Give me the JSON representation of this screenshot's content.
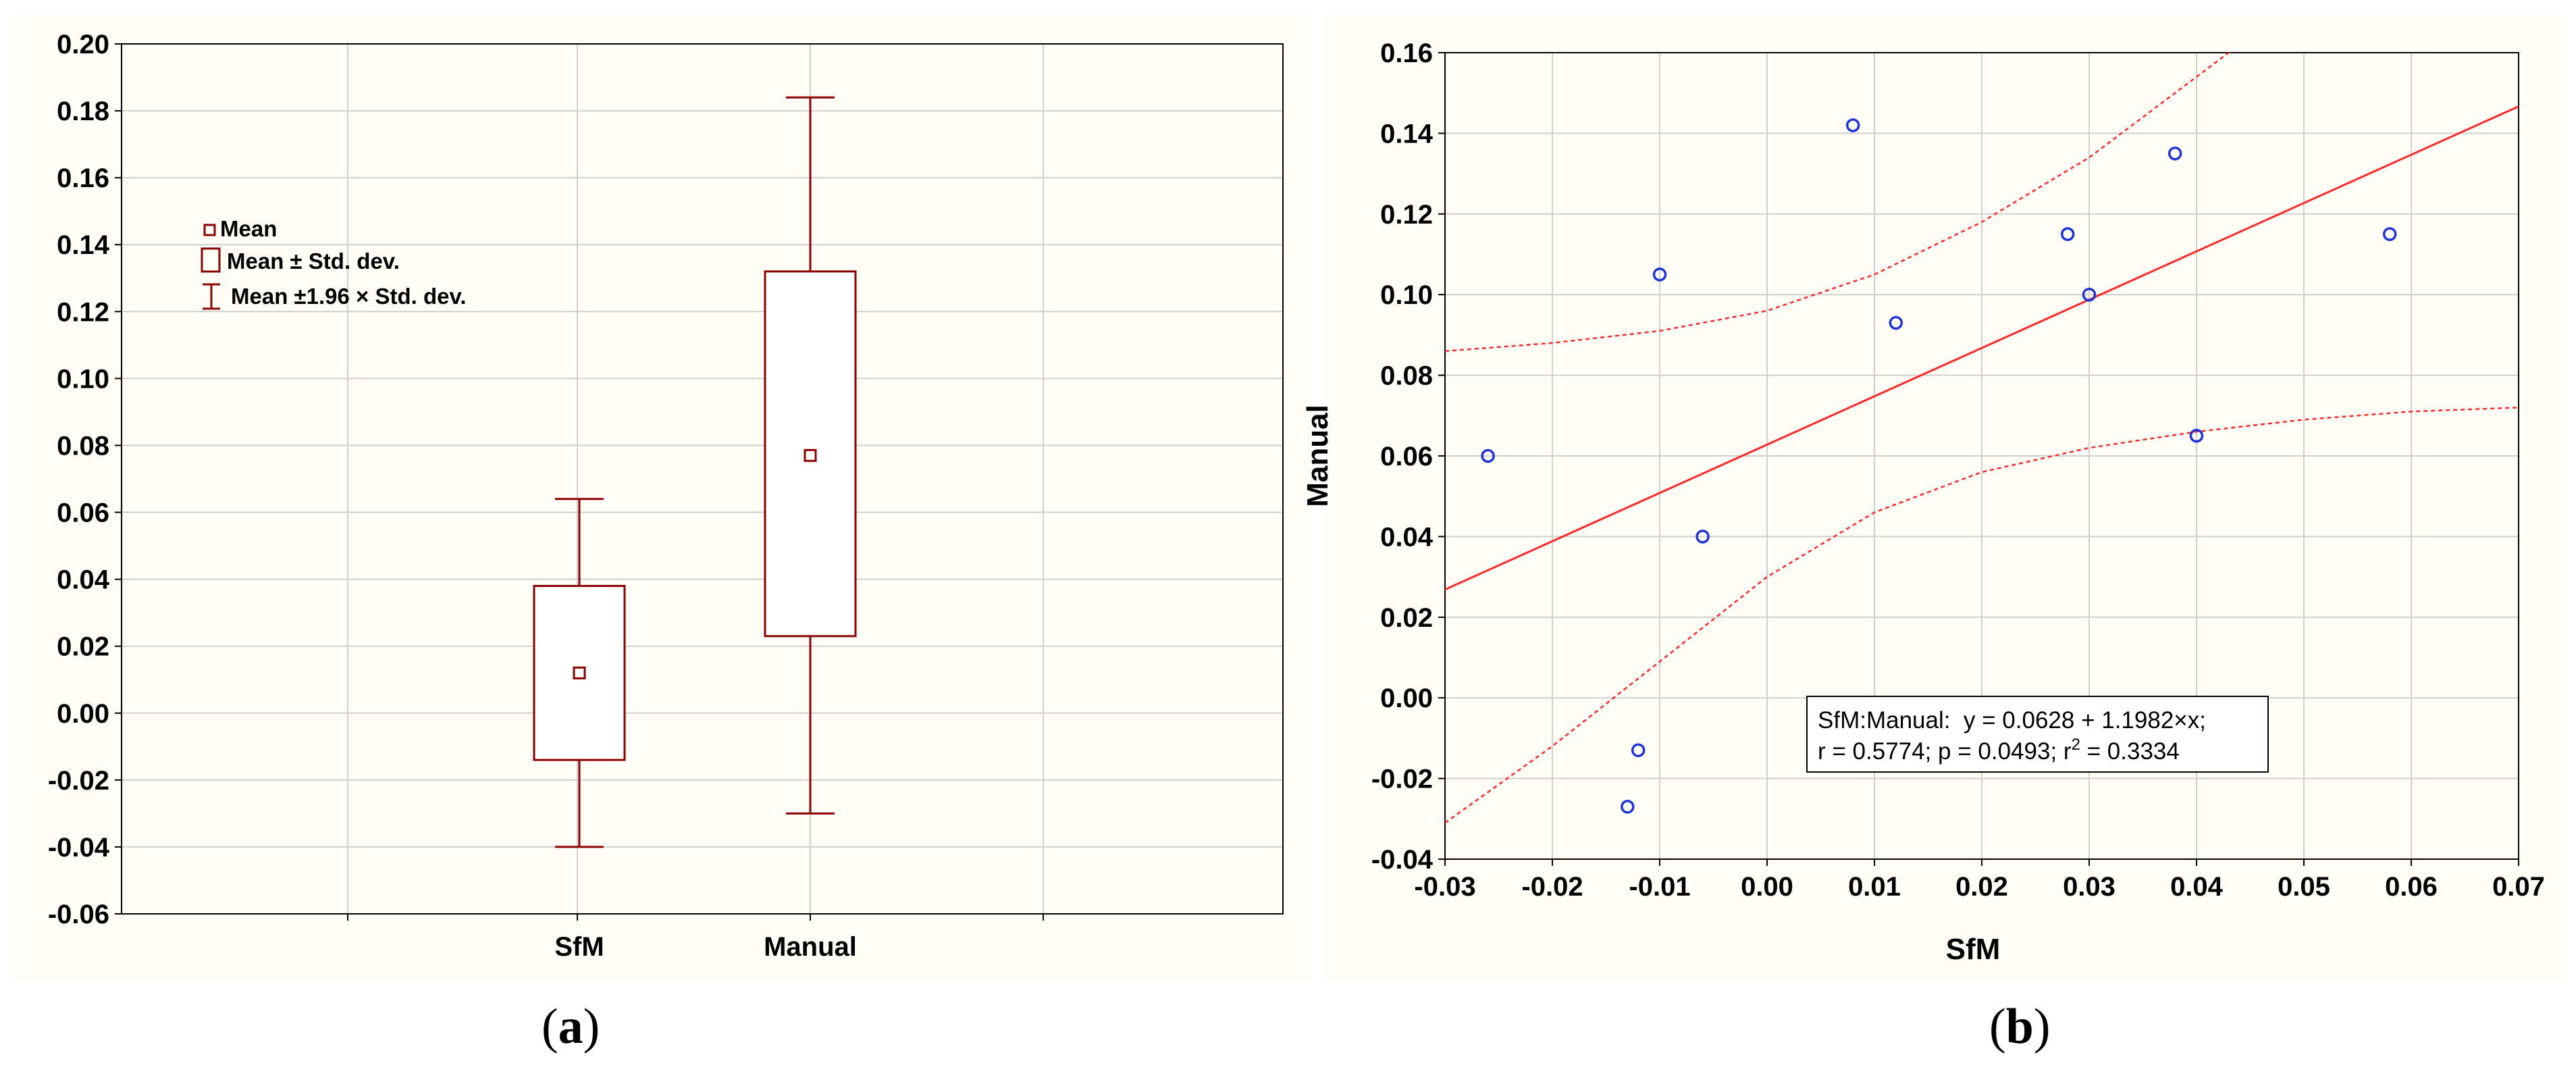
{
  "captions": {
    "a": {
      "open": "(",
      "letter": "a",
      "close": ")"
    },
    "b": {
      "open": "(",
      "letter": "b",
      "close": ")"
    }
  },
  "colors": {
    "box": "#8b0000",
    "points": "#1f33d6",
    "fit_line": "#ff2a2a",
    "grid": "#cfcfcf",
    "background": "#fffdf6"
  },
  "chart_data": [
    {
      "type": "box",
      "title": "",
      "xlabel": "",
      "ylabel": "",
      "categories": [
        "SfM",
        "Manual"
      ],
      "ylim": [
        -0.06,
        0.2
      ],
      "yticks": [
        "-0.06",
        "-0.04",
        "-0.02",
        "0.00",
        "0.02",
        "0.04",
        "0.06",
        "0.08",
        "0.10",
        "0.12",
        "0.14",
        "0.16",
        "0.18",
        "0.20"
      ],
      "grid": true,
      "series": [
        {
          "name": "SfM",
          "mean": 0.012,
          "sd_low": -0.014,
          "sd_high": 0.038,
          "whisker_low": -0.04,
          "whisker_high": 0.064
        },
        {
          "name": "Manual",
          "mean": 0.077,
          "sd_low": 0.023,
          "sd_high": 0.132,
          "whisker_low": -0.03,
          "whisker_high": 0.184
        }
      ],
      "legend": {
        "position": "top-left",
        "entries": [
          "Mean",
          "Mean ± Std. dev.",
          "Mean ±1.96 × Std. dev."
        ]
      }
    },
    {
      "type": "scatter",
      "title": "",
      "xlabel": "SfM",
      "ylabel": "Manual",
      "xlim": [
        -0.03,
        0.07
      ],
      "ylim": [
        -0.04,
        0.16
      ],
      "xticks": [
        "-0.03",
        "-0.02",
        "-0.01",
        "0.00",
        "0.01",
        "0.02",
        "0.03",
        "0.04",
        "0.05",
        "0.06",
        "0.07"
      ],
      "yticks": [
        "-0.04",
        "-0.02",
        "0.00",
        "0.02",
        "0.04",
        "0.06",
        "0.08",
        "0.10",
        "0.12",
        "0.14",
        "0.16"
      ],
      "grid": true,
      "points": [
        {
          "x": -0.026,
          "y": 0.06
        },
        {
          "x": -0.013,
          "y": -0.027
        },
        {
          "x": -0.012,
          "y": -0.013
        },
        {
          "x": -0.01,
          "y": 0.105
        },
        {
          "x": -0.006,
          "y": 0.04
        },
        {
          "x": 0.008,
          "y": 0.142
        },
        {
          "x": 0.012,
          "y": 0.093
        },
        {
          "x": 0.028,
          "y": 0.115
        },
        {
          "x": 0.03,
          "y": 0.1
        },
        {
          "x": 0.038,
          "y": 0.135
        },
        {
          "x": 0.04,
          "y": 0.065
        },
        {
          "x": 0.058,
          "y": 0.115
        }
      ],
      "fit": {
        "intercept": 0.0628,
        "slope": 1.1982
      },
      "confidence_band": {
        "upper": [
          [
            -0.03,
            0.086
          ],
          [
            -0.02,
            0.088
          ],
          [
            -0.01,
            0.091
          ],
          [
            0.0,
            0.096
          ],
          [
            0.01,
            0.105
          ],
          [
            0.02,
            0.118
          ],
          [
            0.03,
            0.134
          ],
          [
            0.04,
            0.154
          ],
          [
            0.045,
            0.164
          ]
        ],
        "lower": [
          [
            -0.03,
            -0.031
          ],
          [
            -0.02,
            -0.012
          ],
          [
            -0.01,
            0.009
          ],
          [
            0.0,
            0.03
          ],
          [
            0.01,
            0.046
          ],
          [
            0.02,
            0.056
          ],
          [
            0.03,
            0.062
          ],
          [
            0.04,
            0.066
          ],
          [
            0.05,
            0.069
          ],
          [
            0.06,
            0.071
          ],
          [
            0.07,
            0.072
          ]
        ]
      },
      "annotation": {
        "line1": "SfM:Manual:  y = 0.0628 + 1.1982×x;",
        "line2_prefix": "r = 0.5774; p = 0.0493; r",
        "line2_sup": "2",
        "line2_suffix": " = 0.3334"
      }
    }
  ]
}
